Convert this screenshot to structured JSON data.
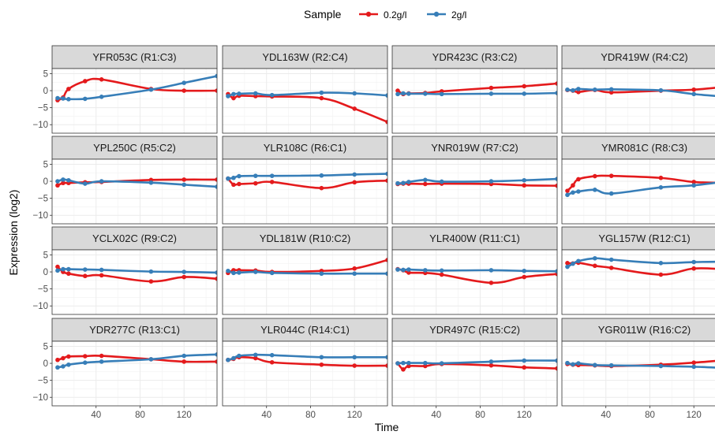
{
  "chart_data": {
    "type": "line",
    "xlabel": "Time",
    "ylabel": "Expression (log2)",
    "xlim": [
      0,
      150
    ],
    "ylim": [
      -12.5,
      6.5
    ],
    "x_ticks": [
      40,
      80,
      120
    ],
    "y_ticks": [
      5,
      0,
      -5,
      -10
    ],
    "x_tick_labels": [
      "40",
      "80",
      "120"
    ],
    "y_tick_labels": [
      "5",
      "0",
      "−5",
      "−10"
    ],
    "legend": {
      "title": "Sample",
      "position": "top",
      "entries": [
        "0.2g/l",
        "2g/l"
      ]
    },
    "colors": {
      "0.2g/l": "#e41a1c",
      "2g/l": "#377eb8"
    },
    "grid": true,
    "x": [
      5,
      10,
      15,
      30,
      45,
      90,
      120,
      150
    ],
    "panels": [
      {
        "title": "YFR053C (R1:C3)",
        "series": [
          {
            "name": "0.2g/l",
            "values": [
              -2.8,
              -2.0,
              0.5,
              2.8,
              3.3,
              0.5,
              0.0,
              0.0
            ]
          },
          {
            "name": "2g/l",
            "values": [
              -2.2,
              -2.3,
              -2.5,
              -2.4,
              -1.8,
              0.3,
              2.3,
              4.3
            ]
          }
        ]
      },
      {
        "title": "YDL163W (R2:C4)",
        "series": [
          {
            "name": "0.2g/l",
            "values": [
              -1.0,
              -2.2,
              -1.5,
              -1.6,
              -1.7,
              -2.2,
              -5.3,
              -9.2
            ]
          },
          {
            "name": "2g/l",
            "values": [
              -1.6,
              -1.0,
              -0.9,
              -0.8,
              -1.3,
              -0.6,
              -0.8,
              -1.4
            ]
          }
        ]
      },
      {
        "title": "YDR423C (R3:C2)",
        "series": [
          {
            "name": "0.2g/l",
            "values": [
              0.0,
              -1.0,
              -0.8,
              -0.7,
              -0.2,
              0.8,
              1.3,
              2.1
            ]
          },
          {
            "name": "2g/l",
            "values": [
              -1.0,
              -0.8,
              -0.9,
              -0.9,
              -1.0,
              -0.9,
              -0.9,
              -0.7
            ]
          }
        ]
      },
      {
        "title": "YDR419W (R4:C2)",
        "series": [
          {
            "name": "0.2g/l",
            "values": [
              0.2,
              0.0,
              -0.4,
              0.2,
              -0.5,
              0.0,
              0.3,
              1.2
            ]
          },
          {
            "name": "2g/l",
            "values": [
              0.3,
              0.1,
              0.5,
              0.3,
              0.4,
              0.1,
              -1.0,
              -1.8
            ]
          }
        ]
      },
      {
        "title": "YPL250C (R5:C2)",
        "series": [
          {
            "name": "0.2g/l",
            "values": [
              -1.2,
              -0.5,
              -0.5,
              -0.3,
              -0.2,
              0.4,
              0.5,
              0.5
            ]
          },
          {
            "name": "2g/l",
            "values": [
              0.0,
              0.5,
              0.3,
              -0.7,
              0.0,
              -0.4,
              -1.0,
              -1.6
            ]
          }
        ]
      },
      {
        "title": "YLR108C (R6:C1)",
        "series": [
          {
            "name": "0.2g/l",
            "values": [
              0.8,
              -1.0,
              -0.8,
              -0.6,
              -0.2,
              -2.0,
              -0.3,
              0.2
            ]
          },
          {
            "name": "2g/l",
            "values": [
              0.8,
              1.0,
              1.5,
              1.6,
              1.6,
              1.7,
              2.0,
              2.2
            ]
          }
        ]
      },
      {
        "title": "YNR019W (R7:C2)",
        "series": [
          {
            "name": "0.2g/l",
            "values": [
              -0.8,
              -0.7,
              -0.7,
              -0.8,
              -0.7,
              -0.8,
              -1.2,
              -1.3
            ]
          },
          {
            "name": "2g/l",
            "values": [
              -0.6,
              -0.5,
              -0.2,
              0.4,
              -0.1,
              0.0,
              0.3,
              0.7
            ]
          }
        ]
      },
      {
        "title": "YMR081C (R8:C3)",
        "series": [
          {
            "name": "0.2g/l",
            "values": [
              -2.8,
              -1.2,
              0.6,
              1.5,
              1.6,
              1.0,
              -0.2,
              -0.5
            ]
          },
          {
            "name": "2g/l",
            "values": [
              -4.0,
              -3.3,
              -3.0,
              -2.5,
              -3.6,
              -1.8,
              -1.2,
              0.0
            ]
          }
        ]
      },
      {
        "title": "YCLX02C (R9:C2)",
        "series": [
          {
            "name": "0.2g/l",
            "values": [
              1.5,
              0.0,
              -0.5,
              -1.2,
              -1.0,
              -2.8,
              -1.5,
              -2.0
            ]
          },
          {
            "name": "2g/l",
            "values": [
              0.4,
              0.8,
              0.8,
              0.7,
              0.6,
              0.1,
              0.0,
              -0.2
            ]
          }
        ]
      },
      {
        "title": "YDL181W (R10:C2)",
        "series": [
          {
            "name": "0.2g/l",
            "values": [
              -0.3,
              0.5,
              0.5,
              0.4,
              0.0,
              0.3,
              1.0,
              3.5
            ]
          },
          {
            "name": "2g/l",
            "values": [
              0.3,
              -0.3,
              -0.2,
              0.0,
              -0.3,
              -0.5,
              -0.5,
              -0.5
            ]
          }
        ]
      },
      {
        "title": "YLR400W (R11:C1)",
        "series": [
          {
            "name": "0.2g/l",
            "values": [
              0.8,
              0.5,
              -0.2,
              -0.3,
              -0.8,
              -3.2,
              -1.5,
              -0.6
            ]
          },
          {
            "name": "2g/l",
            "values": [
              0.7,
              0.6,
              0.7,
              0.5,
              0.4,
              0.5,
              0.3,
              0.2
            ]
          }
        ]
      },
      {
        "title": "YGL157W (R12:C1)",
        "series": [
          {
            "name": "0.2g/l",
            "values": [
              2.6,
              2.5,
              2.7,
              1.8,
              1.2,
              -0.8,
              1.0,
              0.7
            ]
          },
          {
            "name": "2g/l",
            "values": [
              1.5,
              2.4,
              3.2,
              4.0,
              3.6,
              2.6,
              2.9,
              3.0
            ]
          }
        ]
      },
      {
        "title": "YDR277C (R13:C1)",
        "series": [
          {
            "name": "0.2g/l",
            "values": [
              1.0,
              1.5,
              2.0,
              2.1,
              2.2,
              1.2,
              0.5,
              0.5
            ]
          },
          {
            "name": "2g/l",
            "values": [
              -1.2,
              -0.9,
              -0.4,
              0.2,
              0.5,
              1.2,
              2.2,
              2.6
            ]
          }
        ]
      },
      {
        "title": "YLR044C (R14:C1)",
        "series": [
          {
            "name": "0.2g/l",
            "values": [
              1.0,
              1.3,
              1.8,
              1.5,
              0.3,
              -0.4,
              -0.7,
              -0.7
            ]
          },
          {
            "name": "2g/l",
            "values": [
              1.0,
              1.5,
              2.2,
              2.5,
              2.4,
              1.8,
              1.8,
              1.8
            ]
          }
        ]
      },
      {
        "title": "YDR497C (R15:C2)",
        "series": [
          {
            "name": "0.2g/l",
            "values": [
              0.0,
              -1.8,
              -0.8,
              -0.8,
              -0.2,
              -0.6,
              -1.2,
              -1.5
            ]
          },
          {
            "name": "2g/l",
            "values": [
              0.0,
              0.1,
              0.1,
              0.1,
              0.0,
              0.5,
              0.8,
              0.8
            ]
          }
        ]
      },
      {
        "title": "YGR011W (R16:C2)",
        "series": [
          {
            "name": "0.2g/l",
            "values": [
              -0.2,
              -0.4,
              -0.5,
              -0.6,
              -0.8,
              -0.4,
              0.2,
              1.0
            ]
          },
          {
            "name": "2g/l",
            "values": [
              0.1,
              -0.3,
              0.0,
              -0.5,
              -0.6,
              -0.8,
              -1.0,
              -1.4
            ]
          }
        ]
      }
    ]
  }
}
